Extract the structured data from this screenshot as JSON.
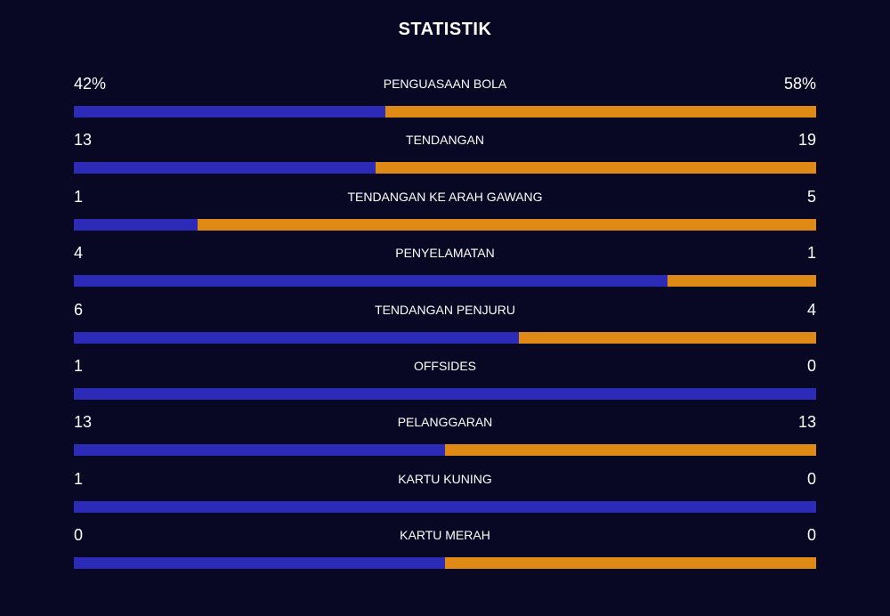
{
  "title": "STATISTIK",
  "colors": {
    "background": "#080824",
    "home": "#2b2bb8",
    "away": "#e08a16"
  },
  "stats": [
    {
      "label": "PENGUASAAN BOLA",
      "left": "42%",
      "right": "58%",
      "left_share": 0.42
    },
    {
      "label": "TENDANGAN",
      "left": "13",
      "right": "19",
      "left_share": 0.406
    },
    {
      "label": "TENDANGAN KE ARAH GAWANG",
      "left": "1",
      "right": "5",
      "left_share": 0.167
    },
    {
      "label": "PENYELAMATAN",
      "left": "4",
      "right": "1",
      "left_share": 0.8
    },
    {
      "label": "TENDANGAN PENJURU",
      "left": "6",
      "right": "4",
      "left_share": 0.6
    },
    {
      "label": "OFFSIDES",
      "left": "1",
      "right": "0",
      "left_share": 1.0
    },
    {
      "label": "PELANGGARAN",
      "left": "13",
      "right": "13",
      "left_share": 0.5
    },
    {
      "label": "KARTU KUNING",
      "left": "1",
      "right": "0",
      "left_share": 1.0
    },
    {
      "label": "KARTU MERAH",
      "left": "0",
      "right": "0",
      "left_share": 0.5
    }
  ]
}
